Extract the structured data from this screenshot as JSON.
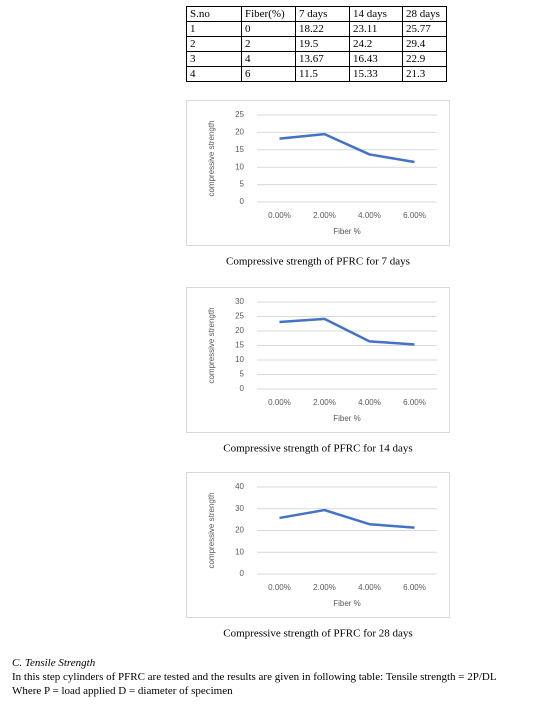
{
  "table": {
    "header": [
      "S.no",
      "Fiber(%)",
      "7 days",
      "14 days",
      "28 days"
    ],
    "rows": [
      [
        "1",
        "0",
        "18.22",
        "23.11",
        "25.77"
      ],
      [
        "2",
        "2",
        "19.5",
        "24.2",
        "29.4"
      ],
      [
        "3",
        "4",
        "13.67",
        "16.43",
        "22.9"
      ],
      [
        "4",
        "6",
        "11.5",
        "15.33",
        "21.3"
      ]
    ]
  },
  "chart_data": [
    {
      "type": "line",
      "categories": [
        "0.00%",
        "2.00%",
        "4.00%",
        "6.00%"
      ],
      "x_label": "Fiber %",
      "y_label": "compressive strength",
      "caption": "Compressive strength of PFRC for 7 days",
      "series": [
        {
          "color": "#4472c4",
          "values": [
            18.22,
            19.5,
            13.67,
            11.5
          ]
        }
      ],
      "ylim": [
        0,
        25
      ],
      "yticks": [
        0,
        5,
        10,
        15,
        20,
        25
      ],
      "grid": true
    },
    {
      "type": "line",
      "categories": [
        "0.00%",
        "2.00%",
        "4.00%",
        "6.00%"
      ],
      "x_label": "Fiber %",
      "y_label": "compressive strength",
      "caption": "Compressive strength of PFRC for 14 days",
      "series": [
        {
          "color": "#4472c4",
          "values": [
            23.11,
            24.2,
            16.43,
            15.33
          ]
        }
      ],
      "ylim": [
        0,
        30
      ],
      "yticks": [
        0,
        5,
        10,
        15,
        20,
        25,
        30
      ],
      "grid": true
    },
    {
      "type": "line",
      "categories": [
        "0.00%",
        "2.00%",
        "4.00%",
        "6.00%"
      ],
      "x_label": "Fiber %",
      "y_label": "compressive strength",
      "caption": "Compressive strength of PFRC for 28 days",
      "series": [
        {
          "color": "#4472c4",
          "values": [
            25.77,
            29.4,
            22.9,
            21.3
          ]
        }
      ],
      "ylim": [
        0,
        40
      ],
      "yticks": [
        0,
        10,
        20,
        30,
        40
      ],
      "grid": true
    }
  ],
  "section": {
    "heading": "C.   Tensile Strength",
    "lines": [
      "In this step cylinders of PFRC are tested and the results are given in following table: Tensile strength = 2P/DL",
      "Where P = load applied D = diameter of specimen"
    ]
  }
}
